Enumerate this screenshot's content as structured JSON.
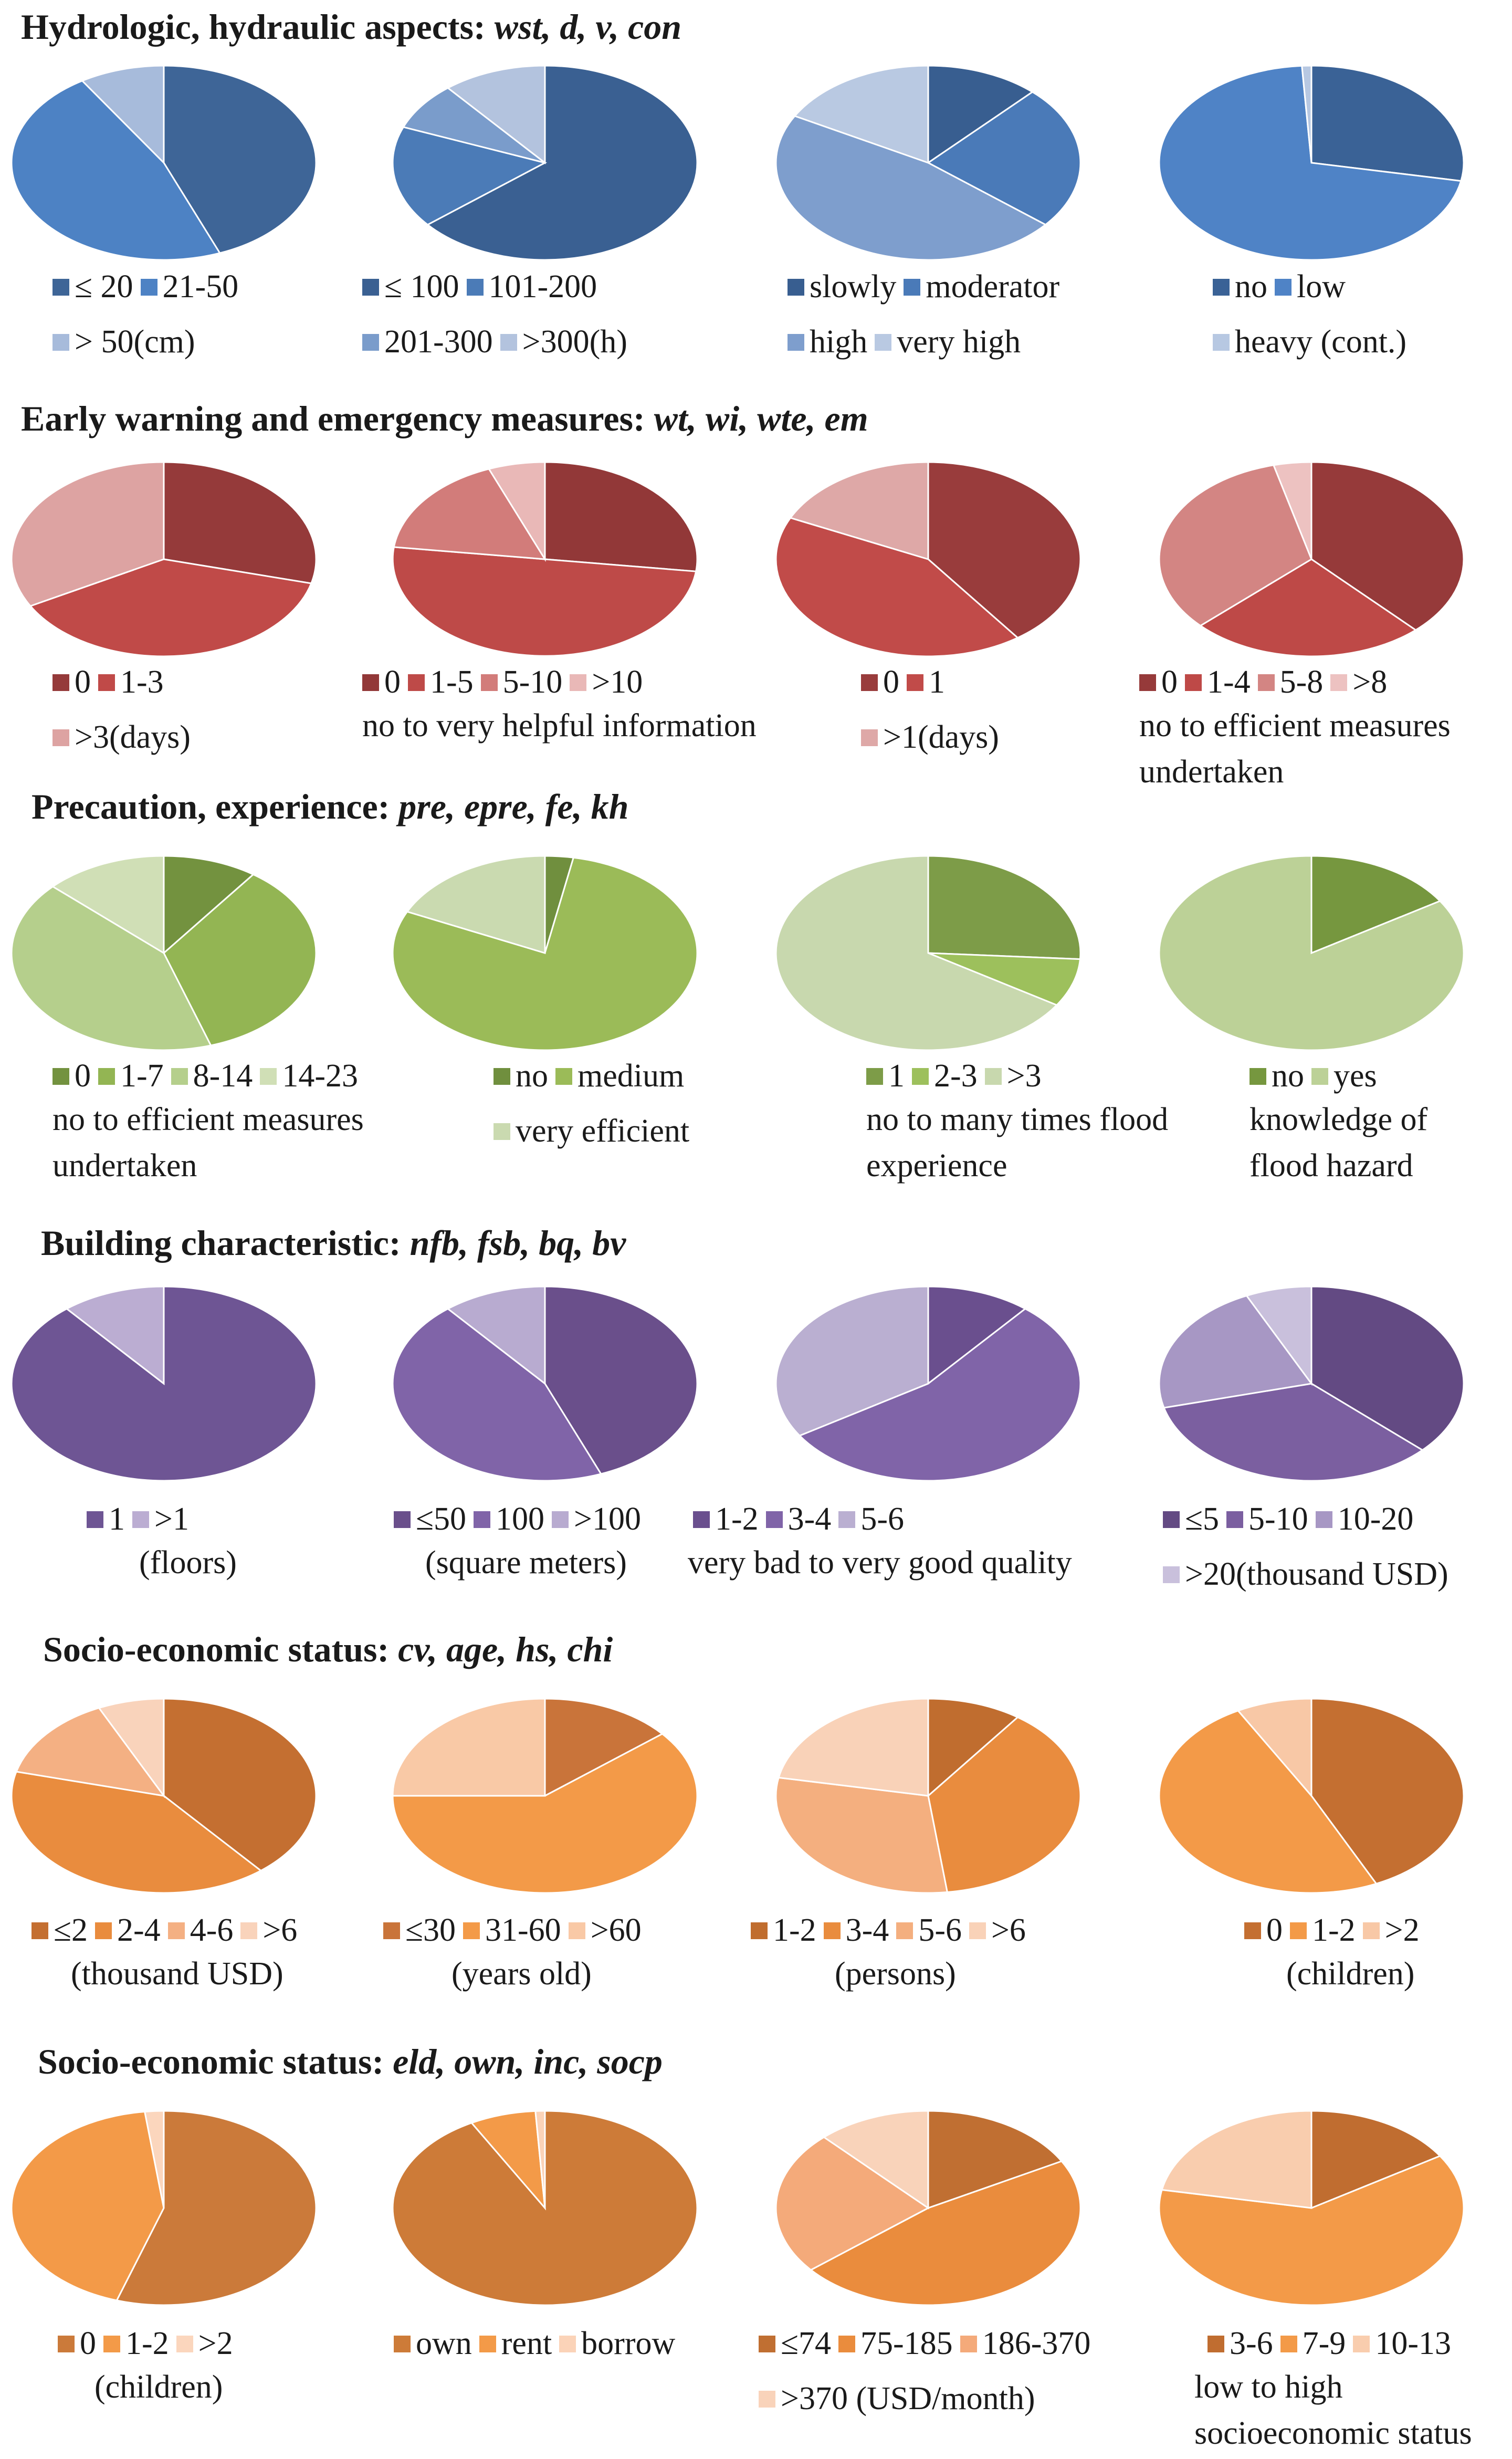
{
  "chart_data": [
    {
      "type": "pie",
      "group": 0,
      "index": 0,
      "variable": "wst",
      "title": "Hydrologic, hydraulic aspects: wst, d, v, con",
      "categories": [
        "≤ 20",
        "21-50",
        "> 50(cm)"
      ],
      "values": [
        44,
        47,
        9
      ],
      "colors": [
        "#3E6597",
        "#4D82C4",
        "#A7BBDB"
      ],
      "legend_rows": [
        [
          "≤ 20",
          "21-50"
        ],
        [
          "> 50(cm)"
        ]
      ],
      "notes": []
    },
    {
      "type": "pie",
      "group": 0,
      "index": 1,
      "variable": "d",
      "categories": [
        "≤ 100",
        "101-200",
        "201-300",
        ">300(h)"
      ],
      "values": [
        64,
        17,
        8,
        11
      ],
      "colors": [
        "#3A6092",
        "#4B7BB7",
        "#7A9CCB",
        "#B3C3DE"
      ],
      "legend_rows": [
        [
          "≤ 100",
          "101-200"
        ],
        [
          "201-300",
          ">300(h)"
        ]
      ],
      "notes": []
    },
    {
      "type": "pie",
      "group": 0,
      "index": 2,
      "variable": "v",
      "categories": [
        "slowly",
        "moderator",
        "high",
        "very high"
      ],
      "values": [
        12,
        24,
        47,
        17
      ],
      "colors": [
        "#385E90",
        "#4A7AB8",
        "#7E9ECD",
        "#B9C9E2"
      ],
      "legend_rows": [
        [
          "slowly",
          "moderator"
        ],
        [
          "high",
          "very high"
        ]
      ],
      "notes": []
    },
    {
      "type": "pie",
      "group": 0,
      "index": 3,
      "variable": "con",
      "categories": [
        "no",
        "low",
        "heavy (cont.)"
      ],
      "values": [
        28,
        71,
        1
      ],
      "colors": [
        "#3A6296",
        "#4F83C6",
        "#B7C8E2"
      ],
      "legend_rows": [
        [
          "no",
          "low"
        ],
        [
          "heavy (cont.)"
        ]
      ],
      "notes": []
    },
    {
      "type": "pie",
      "group": 1,
      "index": 0,
      "variable": "wt",
      "title": "Early warning and emergency measures: wt, wi, wte, em",
      "categories": [
        "0",
        "1-3",
        ">3(days)"
      ],
      "values": [
        29,
        38,
        33
      ],
      "colors": [
        "#953A3A",
        "#C04A48",
        "#DDA3A2"
      ],
      "legend_rows": [
        [
          "0",
          "1-3"
        ],
        [
          ">3(days)"
        ]
      ],
      "notes": []
    },
    {
      "type": "pie",
      "group": 1,
      "index": 1,
      "variable": "wi",
      "categories": [
        "0",
        "1-5",
        "5-10",
        ">10"
      ],
      "values": [
        27,
        50,
        17,
        6
      ],
      "colors": [
        "#923838",
        "#BE4A48",
        "#D27C7A",
        "#E9B8B7"
      ],
      "legend_rows": [
        [
          "0",
          "1-5",
          "5-10",
          ">10"
        ]
      ],
      "notes": [
        "no to very helpful information"
      ]
    },
    {
      "type": "pie",
      "group": 1,
      "index": 2,
      "variable": "wte",
      "categories": [
        "0",
        "1",
        ">1(days)"
      ],
      "values": [
        40,
        42,
        18
      ],
      "colors": [
        "#993C3C",
        "#C14B49",
        "#DEA8A7"
      ],
      "legend_rows": [
        [
          "0",
          "1"
        ],
        [
          ">1(days)"
        ]
      ],
      "notes": []
    },
    {
      "type": "pie",
      "group": 1,
      "index": 3,
      "variable": "em",
      "categories": [
        "0",
        "1-4",
        "5-8",
        ">8"
      ],
      "values": [
        38,
        25,
        33,
        4
      ],
      "colors": [
        "#963A3A",
        "#BE4947",
        "#D38583",
        "#EDC2C1"
      ],
      "legend_rows": [
        [
          "0",
          "1-4",
          "5-8",
          ">8"
        ]
      ],
      "notes": [
        "no to efficient measures",
        "undertaken"
      ]
    },
    {
      "type": "pie",
      "group": 2,
      "index": 0,
      "variable": "pre",
      "title": "Precaution, experience: pre, epre, fe, kh",
      "categories": [
        "0",
        "1-7",
        "8-14",
        "14-23"
      ],
      "values": [
        10,
        35,
        42,
        13
      ],
      "colors": [
        "#73923F",
        "#93B553",
        "#B5CF8C",
        "#D0DFB6"
      ],
      "legend_rows": [
        [
          "0",
          "1-7",
          "8-14",
          "14-23"
        ]
      ],
      "notes": [
        "no to efficient measures",
        "undertaken"
      ]
    },
    {
      "type": "pie",
      "group": 2,
      "index": 1,
      "variable": "epre",
      "categories": [
        "no",
        "medium",
        "very efficient"
      ],
      "values": [
        3,
        79,
        18
      ],
      "colors": [
        "#708F3E",
        "#9BBB58",
        "#CADAB0"
      ],
      "legend_rows": [
        [
          "no",
          "medium"
        ],
        [
          "very efficient"
        ]
      ],
      "notes": []
    },
    {
      "type": "pie",
      "group": 2,
      "index": 2,
      "variable": "fe",
      "categories": [
        "1",
        "2-3",
        ">3"
      ],
      "values": [
        26,
        8,
        66
      ],
      "colors": [
        "#7D9C48",
        "#9DC05C",
        "#C8D8AE"
      ],
      "legend_rows": [
        [
          "1",
          "2-3",
          ">3"
        ]
      ],
      "notes": [
        "no to many times flood",
        "experience"
      ]
    },
    {
      "type": "pie",
      "group": 2,
      "index": 3,
      "variable": "kh",
      "categories": [
        "no",
        "yes"
      ],
      "values": [
        16,
        84
      ],
      "colors": [
        "#76973F",
        "#BCD197"
      ],
      "legend_rows": [
        [
          "no",
          "yes"
        ]
      ],
      "notes": [
        "knowledge of",
        "flood hazard"
      ]
    },
    {
      "type": "pie",
      "group": 3,
      "index": 0,
      "variable": "nfb",
      "title": "Building characteristic: nfb, fsb, bq, bv",
      "categories": [
        "1",
        ">1"
      ],
      "values": [
        89,
        11
      ],
      "colors": [
        "#6E5594",
        "#BBADD2"
      ],
      "legend_rows": [
        [
          "1",
          ">1"
        ]
      ],
      "notes": [
        "(floors)"
      ]
    },
    {
      "type": "pie",
      "group": 3,
      "index": 1,
      "variable": "fsb",
      "categories": [
        "≤50",
        "100",
        ">100"
      ],
      "values": [
        44,
        45,
        11
      ],
      "colors": [
        "#6A4F8B",
        "#8064A8",
        "#B8ABD0"
      ],
      "legend_rows": [
        [
          "≤50",
          "100",
          ">100"
        ]
      ],
      "notes": [
        "(square meters)"
      ]
    },
    {
      "type": "pie",
      "group": 3,
      "index": 2,
      "variable": "bq",
      "categories": [
        "1-2",
        "3-4",
        "5-6"
      ],
      "values": [
        11,
        55,
        34
      ],
      "colors": [
        "#6A4F8E",
        "#8064A8",
        "#BAAFD1"
      ],
      "legend_rows": [
        [
          "1-2",
          "3-4",
          "5-6"
        ]
      ],
      "notes": [
        "very bad to very good quality"
      ]
    },
    {
      "type": "pie",
      "group": 3,
      "index": 3,
      "variable": "bv",
      "categories": [
        "≤5",
        "5-10",
        "10-20",
        ">20(thousand USD)"
      ],
      "values": [
        37,
        34,
        22,
        7
      ],
      "colors": [
        "#634A83",
        "#7B5FA0",
        "#A797C4",
        "#C9C0DC"
      ],
      "legend_rows": [
        [
          "≤5",
          "5-10",
          "10-20"
        ],
        [
          ">20(thousand USD)"
        ]
      ],
      "notes": []
    },
    {
      "type": "pie",
      "group": 4,
      "index": 0,
      "variable": "cv",
      "title": "Socio-economic status: cv, age, hs, chi",
      "categories": [
        "≤2",
        "2-4",
        "4-6",
        ">6"
      ],
      "values": [
        39,
        40,
        14,
        7
      ],
      "colors": [
        "#C46F31",
        "#E98C3E",
        "#F4B083",
        "#F9D3BB"
      ],
      "legend_rows": [
        [
          "≤2",
          "2-4",
          "4-6",
          ">6"
        ]
      ],
      "notes": [
        "(thousand USD)"
      ]
    },
    {
      "type": "pie",
      "group": 4,
      "index": 1,
      "variable": "age",
      "categories": [
        "≤30",
        "31-60",
        ">60"
      ],
      "values": [
        14,
        61,
        25
      ],
      "colors": [
        "#C9743A",
        "#F39A48",
        "#F9C9A6"
      ],
      "legend_rows": [
        [
          "≤30",
          "31-60",
          ">60"
        ]
      ],
      "notes": [
        "(years old)"
      ]
    },
    {
      "type": "pie",
      "group": 4,
      "index": 2,
      "variable": "hs",
      "categories": [
        "1-2",
        "3-4",
        "5-6",
        ">6"
      ],
      "values": [
        10,
        38,
        30,
        22
      ],
      "colors": [
        "#C06D2F",
        "#E98C3E",
        "#F4AF7F",
        "#F9D2B8"
      ],
      "legend_rows": [
        [
          "1-2",
          "3-4",
          "5-6",
          ">6"
        ]
      ],
      "notes": [
        "(persons)"
      ]
    },
    {
      "type": "pie",
      "group": 4,
      "index": 3,
      "variable": "chi",
      "categories": [
        "0",
        "1-2",
        ">2"
      ],
      "values": [
        43,
        49,
        8
      ],
      "colors": [
        "#C46F31",
        "#F39A48",
        "#F8C8A6"
      ],
      "legend_rows": [
        [
          "0",
          "1-2",
          ">2"
        ]
      ],
      "notes": [
        "(children)"
      ]
    },
    {
      "type": "pie",
      "group": 5,
      "index": 0,
      "variable": "eld",
      "title": "Socio-economic status: eld, own, inc, socp",
      "categories": [
        "0",
        "1-2",
        ">2"
      ],
      "values": [
        55,
        43,
        2
      ],
      "colors": [
        "#CB7A3A",
        "#F39A48",
        "#FBD6BD"
      ],
      "legend_rows": [
        [
          "0",
          "1-2",
          ">2"
        ]
      ],
      "notes": [
        "(children)"
      ]
    },
    {
      "type": "pie",
      "group": 5,
      "index": 1,
      "variable": "own",
      "categories": [
        "own",
        "rent",
        "borrow"
      ],
      "values": [
        92,
        7,
        1
      ],
      "colors": [
        "#CD7B38",
        "#F39A48",
        "#FBD3B8"
      ],
      "legend_rows": [
        [
          "own",
          "rent",
          "borrow"
        ]
      ],
      "notes": []
    },
    {
      "type": "pie",
      "group": 5,
      "index": 2,
      "variable": "inc",
      "categories": [
        "≤74",
        "75-185",
        "186-370",
        ">370 (USD/month)"
      ],
      "values": [
        17,
        47,
        24,
        12
      ],
      "colors": [
        "#C06F32",
        "#EA8C3D",
        "#F4AA7A",
        "#F9D3BA"
      ],
      "legend_rows": [
        [
          "≤74",
          "75-185",
          "186-370"
        ],
        [
          ">370 (USD/month)"
        ]
      ],
      "notes": []
    },
    {
      "type": "pie",
      "group": 5,
      "index": 3,
      "variable": "socp",
      "categories": [
        "3-6",
        "7-9",
        "10-13"
      ],
      "values": [
        16,
        62,
        22
      ],
      "colors": [
        "#C06D30",
        "#F39A48",
        "#F9CDAE"
      ],
      "legend_rows": [
        [
          "3-6",
          "7-9",
          "10-13"
        ]
      ],
      "notes": [
        "low to high",
        "socioeconomic status"
      ]
    }
  ],
  "sections": [
    {
      "title": "Hydrologic, hydraulic aspects:",
      "vars": "wst, d, v, con"
    },
    {
      "title": "Early warning and emergency measures:",
      "vars": "wt, wi, wte, em"
    },
    {
      "title": "Precaution, experience:",
      "vars": "pre, epre, fe, kh"
    },
    {
      "title": "Building characteristic:",
      "vars": "nfb, fsb, bq, bv"
    },
    {
      "title": "Socio-economic status:",
      "vars": "cv, age, hs, chi"
    },
    {
      "title": "Socio-economic status:",
      "vars": "eld, own, inc, socp"
    }
  ]
}
